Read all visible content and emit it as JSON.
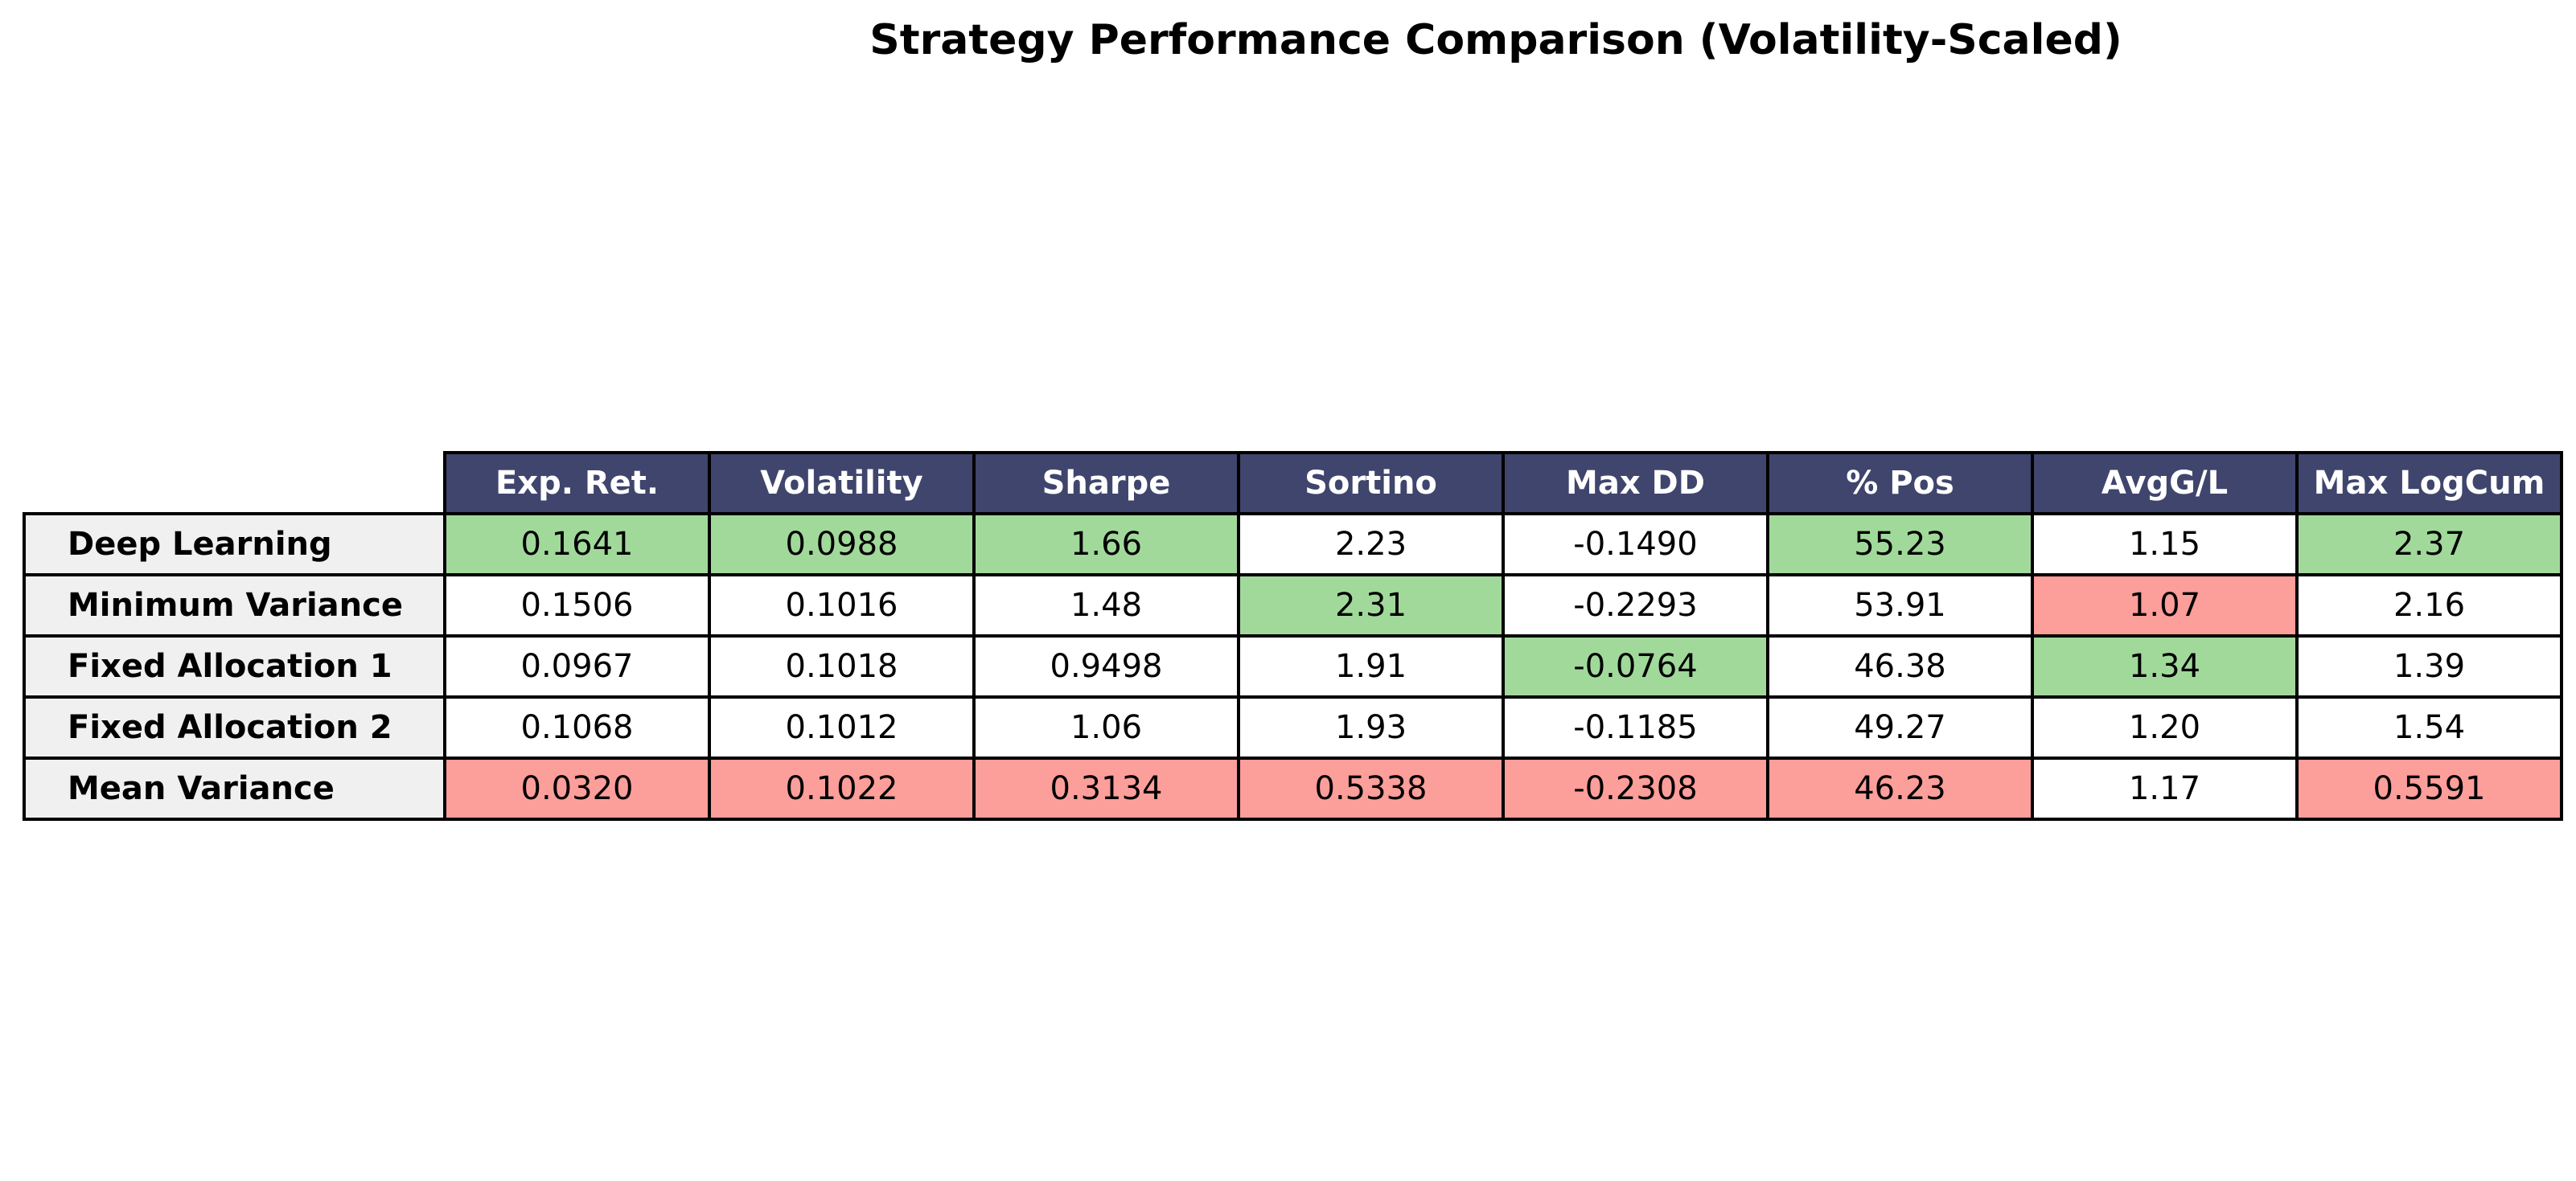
{
  "chart_data": {
    "type": "table",
    "title": "Strategy Performance Comparison (Volatility-Scaled)",
    "columns": [
      "Exp. Ret.",
      "Volatility",
      "Sharpe",
      "Sortino",
      "Max DD",
      "% Pos",
      "AvgG/L",
      "Max LogCum"
    ],
    "rows": [
      {
        "name": "Deep Learning",
        "values": [
          "0.1641",
          "0.0988",
          "1.66",
          "2.23",
          "-0.1490",
          "55.23",
          "1.15",
          "2.37"
        ],
        "highlights": [
          "best",
          "best",
          "best",
          "",
          "",
          "best",
          "",
          "best"
        ]
      },
      {
        "name": "Minimum Variance",
        "values": [
          "0.1506",
          "0.1016",
          "1.48",
          "2.31",
          "-0.2293",
          "53.91",
          "1.07",
          "2.16"
        ],
        "highlights": [
          "",
          "",
          "",
          "best",
          "",
          "",
          "worst",
          ""
        ]
      },
      {
        "name": "Fixed Allocation 1",
        "values": [
          "0.0967",
          "0.1018",
          "0.9498",
          "1.91",
          "-0.0764",
          "46.38",
          "1.34",
          "1.39"
        ],
        "highlights": [
          "",
          "",
          "",
          "",
          "best",
          "",
          "best",
          ""
        ]
      },
      {
        "name": "Fixed Allocation 2",
        "values": [
          "0.1068",
          "0.1012",
          "1.06",
          "1.93",
          "-0.1185",
          "49.27",
          "1.20",
          "1.54"
        ],
        "highlights": [
          "",
          "",
          "",
          "",
          "",
          "",
          "",
          ""
        ]
      },
      {
        "name": "Mean Variance",
        "values": [
          "0.0320",
          "0.1022",
          "0.3134",
          "0.5338",
          "-0.2308",
          "46.23",
          "1.17",
          "0.5591"
        ],
        "highlights": [
          "worst",
          "worst",
          "worst",
          "worst",
          "worst",
          "worst",
          "",
          "worst"
        ]
      }
    ],
    "colors": {
      "header_bg": "#3f456c",
      "header_text": "#ffffff",
      "row_header_bg": "#f0f0f0",
      "best": "#a1d99b",
      "worst": "#fc9e9a",
      "cell_bg": "#ffffff"
    }
  }
}
